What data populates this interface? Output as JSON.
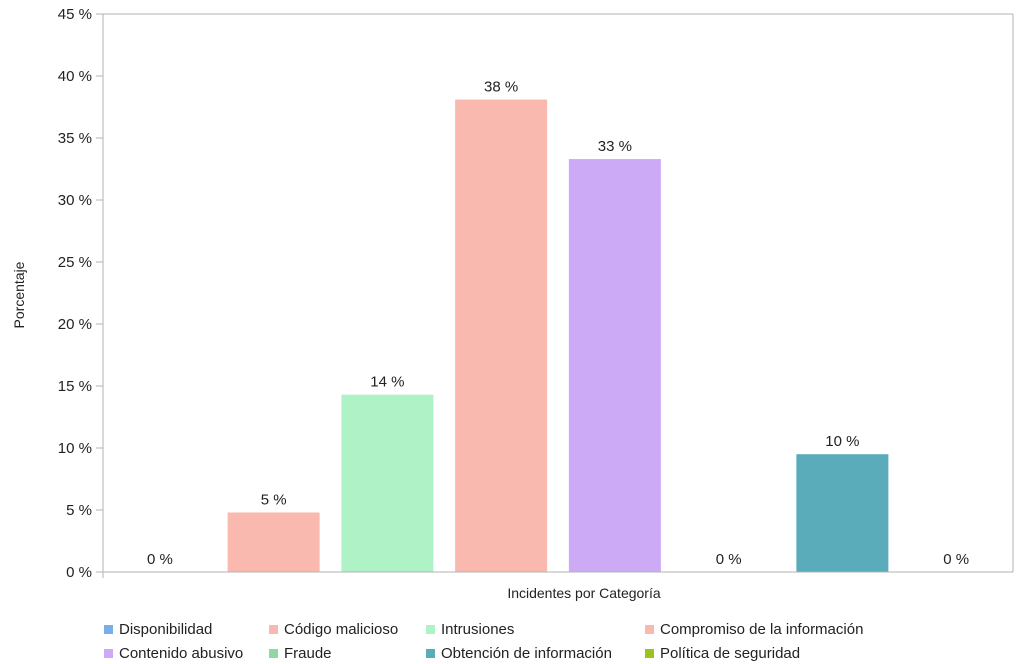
{
  "chart_data": {
    "type": "bar",
    "xlabel": "Incidentes por Categoría",
    "ylabel": "Porcentaje",
    "ylim": [
      0,
      45
    ],
    "yticks": [
      "0 %",
      "5 %",
      "10 %",
      "15 %",
      "20 %",
      "25 %",
      "30 %",
      "35 %",
      "40 %",
      "45 %"
    ],
    "grid": false,
    "legend_position": "bottom",
    "categories": [
      "Disponibilidad",
      "Código malicioso",
      "Intrusiones",
      "Compromiso de la información",
      "Contenido abusivo",
      "Fraude",
      "Obtención de información",
      "Política de seguridad"
    ],
    "values": [
      0,
      4.8,
      14.3,
      38.1,
      33.3,
      0,
      9.5,
      0
    ],
    "data_labels": [
      "0 %",
      "5 %",
      "14 %",
      "38 %",
      "33 %",
      "0 %",
      "10 %",
      "0 %"
    ],
    "colors": [
      "#7aaee8",
      "#f9b9af",
      "#aef2c6",
      "#f9b9af",
      "#cdaaf5",
      "#8fd6a8",
      "#5aacbb",
      "#9ac41c"
    ]
  }
}
